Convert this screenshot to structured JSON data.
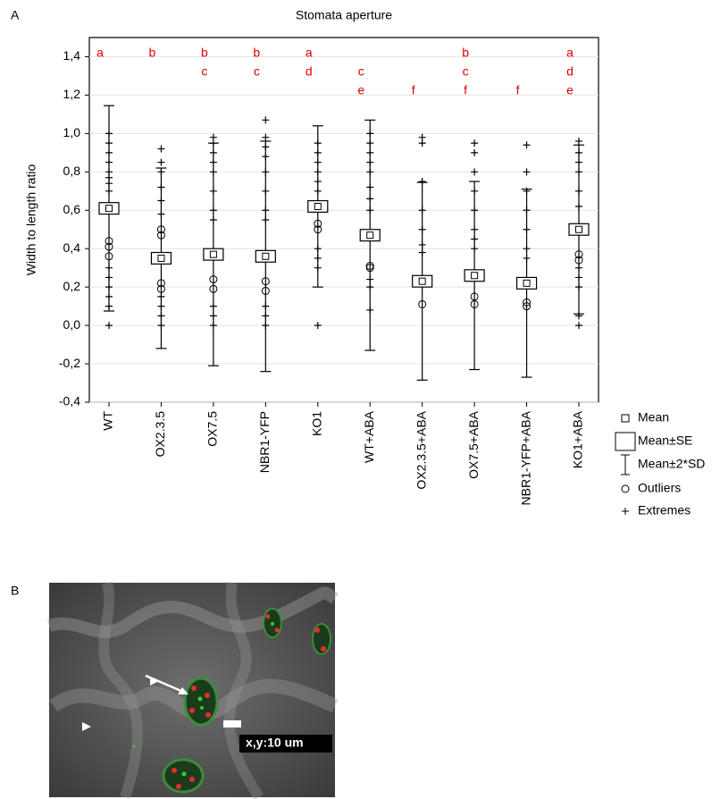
{
  "panel_labels": [
    "A",
    "B"
  ],
  "chart_data": {
    "type": "box",
    "title": "Stomata aperture",
    "y_label": "Width to length ratio",
    "categories": [
      "WT",
      "OX2.3.5",
      "OX7.5",
      "NBR1-YFP",
      "KO1",
      "WT+ABA",
      "OX2.3.5+ABA",
      "OX7.5+ABA",
      "NBR1-YFP+ABA",
      "KO1+ABA"
    ],
    "mean": [
      0.61,
      0.35,
      0.37,
      0.36,
      0.62,
      0.47,
      0.23,
      0.26,
      0.22,
      0.5
    ],
    "se": [
      0.03,
      0.03,
      0.03,
      0.03,
      0.03,
      0.03,
      0.03,
      0.03,
      0.03,
      0.03
    ],
    "two_sd": [
      0.535,
      0.47,
      0.58,
      0.6,
      0.42,
      0.6,
      0.515,
      0.49,
      0.49,
      0.44
    ],
    "outliers": [
      [
        0.44,
        0.41,
        0.36
      ],
      [
        0.5,
        0.47,
        0.22,
        0.19
      ],
      [
        0.24,
        0.19
      ],
      [
        0.23,
        0.18
      ],
      [
        0.53,
        0.5
      ],
      [
        0.31,
        0.3
      ],
      [
        0.11
      ],
      [
        0.15,
        0.11
      ],
      [
        0.12,
        0.1
      ],
      [
        0.37,
        0.34
      ]
    ],
    "extremes": [
      [
        1.0,
        0.95,
        0.9,
        0.85,
        0.8,
        0.77,
        0.74,
        0.7,
        0.3,
        0.25,
        0.2,
        0.15,
        0.1,
        0.0
      ],
      [
        0.92,
        0.85,
        0.8,
        0.72,
        0.65,
        0.58,
        0.15,
        0.1,
        0.05,
        0.0
      ],
      [
        0.98,
        0.95,
        0.9,
        0.85,
        0.8,
        0.7,
        0.6,
        0.55,
        0.1,
        0.05,
        0.0
      ],
      [
        1.07,
        0.98,
        0.93,
        0.88,
        0.8,
        0.7,
        0.6,
        0.55,
        0.1,
        0.05,
        0.0
      ],
      [
        0.95,
        0.9,
        0.85,
        0.8,
        0.75,
        0.7,
        0.4,
        0.35,
        0.3,
        0.0
      ],
      [
        1.0,
        0.95,
        0.9,
        0.85,
        0.8,
        0.72,
        0.66,
        0.6,
        0.24,
        0.2,
        0.08
      ],
      [
        0.98,
        0.95,
        0.75,
        0.6,
        0.5,
        0.42,
        0.38
      ],
      [
        0.95,
        0.9,
        0.8,
        0.7,
        0.6,
        0.5,
        0.45,
        0.4
      ],
      [
        0.94,
        0.8,
        0.7,
        0.6,
        0.5,
        0.4,
        0.35
      ],
      [
        0.96,
        0.9,
        0.85,
        0.8,
        0.7,
        0.62,
        0.3,
        0.25,
        0.2,
        0.05,
        0.0
      ]
    ],
    "letters": [
      [
        "a"
      ],
      [
        "b"
      ],
      [
        "b",
        "c"
      ],
      [
        "b",
        "c"
      ],
      [
        "a",
        "d"
      ],
      [
        "c",
        "e"
      ],
      [
        "f"
      ],
      [
        "b",
        "c",
        "f"
      ],
      [
        "f"
      ],
      [
        "a",
        "d",
        "e"
      ]
    ],
    "letter_color": "#e00000",
    "ylim": [
      -0.4,
      1.5
    ],
    "yticks": [
      {
        "value": -0.4,
        "label": "-0,4"
      },
      {
        "value": -0.2,
        "label": "-0,2"
      },
      {
        "value": 0,
        "label": "0,0"
      },
      {
        "value": 0.2,
        "label": "0,2"
      },
      {
        "value": 0.4,
        "label": "0,4"
      },
      {
        "value": 0.6,
        "label": "0,6"
      },
      {
        "value": 0.8,
        "label": "0,8"
      },
      {
        "value": 1.0,
        "label": "1,0"
      },
      {
        "value": 1.2,
        "label": "1,2"
      },
      {
        "value": 1.4,
        "label": "1,4"
      }
    ],
    "grid": true,
    "legend": [
      "Mean",
      "Mean±SE",
      "Mean±2*SD",
      "Outliers",
      "Extremes"
    ]
  },
  "image": {
    "scale_label": "x,y:10 um"
  }
}
